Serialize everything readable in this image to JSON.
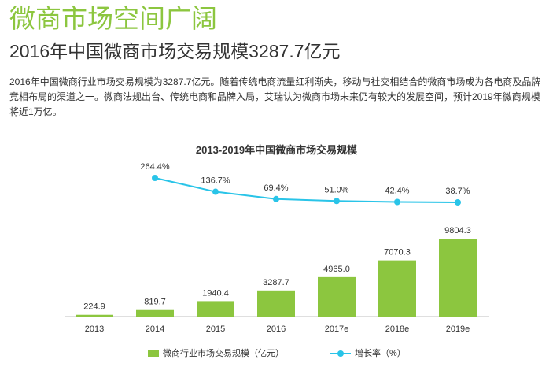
{
  "header": {
    "headline": "微商市场空间广阔",
    "subheadline": "2016年中国微商市场交易规模3287.7亿元",
    "body": "2016年中国微商行业市场交易规模为3287.7亿元。随着传统电商流量红利渐失，移动与社交相结合的微商市场成为各电商及品牌竞相布局的渠道之一。微商法规出台、传统电商和品牌入局，艾瑞认为微商市场未来仍有较大的发展空间，预计2019年微商规模将近1万亿。"
  },
  "colors": {
    "bar": "#8cc63f",
    "line": "#29c4e8",
    "headline": "#8cc63f"
  },
  "chart_data": {
    "type": "bar",
    "title": "2013-2019年中国微商市场交易规模",
    "categories": [
      "2013",
      "2014",
      "2015",
      "2016",
      "2017e",
      "2018e",
      "2019e"
    ],
    "series": [
      {
        "name": "微商行业市场交易规模（亿元）",
        "type": "bar",
        "values": [
          224.9,
          819.7,
          1940.4,
          3287.7,
          4965.0,
          7070.3,
          9804.3
        ],
        "labels": [
          "224.9",
          "819.7",
          "1940.4",
          "3287.7",
          "4965.0",
          "7070.3",
          "9804.3"
        ]
      },
      {
        "name": "增长率（%）",
        "type": "line",
        "values": [
          null,
          264.4,
          136.7,
          69.4,
          51.0,
          42.4,
          38.7
        ],
        "labels": [
          "",
          "264.4%",
          "136.7%",
          "69.4%",
          "51.0%",
          "42.4%",
          "38.7%"
        ]
      }
    ],
    "legend": "bottom",
    "grid": false
  }
}
